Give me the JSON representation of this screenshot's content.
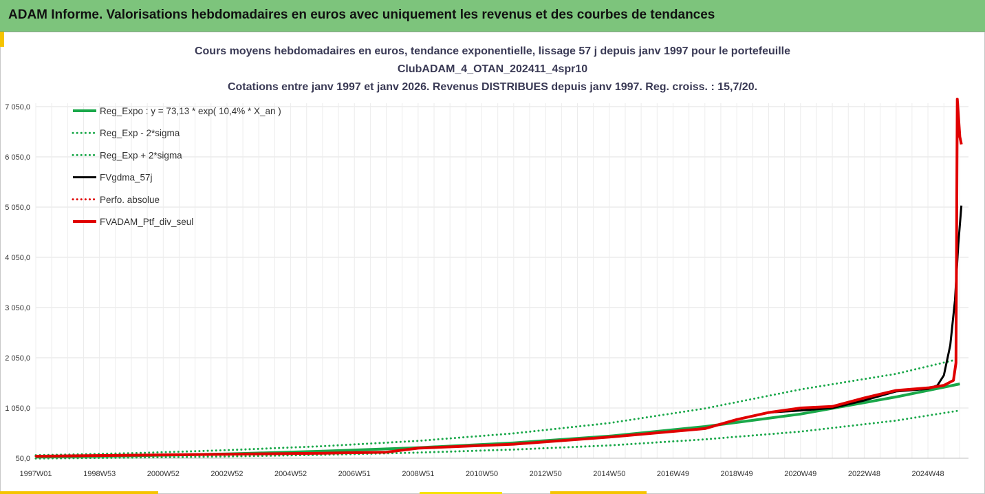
{
  "header": {
    "title": "ADAM Informe. Valorisations hebdomadaires en euros avec uniquement les revenus et des courbes de tendances"
  },
  "chart_data": {
    "type": "line",
    "title_lines": [
      "Cours moyens hebdomadaires  en euros, tendance exponentielle, lissage 57 j depuis janv 1997 pour le portefeuille",
      "ClubADAM_4_OTAN_202411_4spr10",
      "Cotations entre janv 1997 et janv 2026. Revenus DISTRIBUES depuis janv 1997. Reg. croiss. : 15,7/20."
    ],
    "xlabel": "",
    "ylabel": "",
    "ylim": [
      50,
      7400
    ],
    "yticks": [
      "7 050,0",
      "6 050,0",
      "5 050,0",
      "4 050,0",
      "3 050,0",
      "2 050,0",
      "1 050,0",
      "50,0"
    ],
    "ytick_values": [
      7050,
      6050,
      5050,
      4050,
      3050,
      2050,
      1050,
      50
    ],
    "xticks": [
      "1997W01",
      "1998W53",
      "2000W52",
      "2002W52",
      "2004W52",
      "2006W51",
      "2008W51",
      "2010W50",
      "2012W50",
      "2014W50",
      "2016W49",
      "2018W49",
      "2020W49",
      "2022W48",
      "2024W48"
    ],
    "xtick_years": [
      1997.0,
      1999.0,
      2001.0,
      2003.0,
      2005.0,
      2007.0,
      2009.0,
      2011.0,
      2013.0,
      2015.0,
      2017.0,
      2019.0,
      2021.0,
      2023.0,
      2025.0
    ],
    "xlim": [
      1997.0,
      2026.1
    ],
    "series": [
      {
        "name": "Reg_Expo : y = 73,13 * exp( 10,4% *  X_an )",
        "color": "#1aa84a",
        "style": "solid",
        "width": 4,
        "x": [
          1997,
          2000,
          2003,
          2006,
          2009,
          2012,
          2015,
          2018,
          2021,
          2024,
          2026
        ],
        "values": [
          73,
          100,
          135,
          190,
          260,
          355,
          490,
          680,
          930,
          1270,
          1530
        ]
      },
      {
        "name": "Reg_Exp - 2*sigma",
        "color": "#1aa84a",
        "style": "dotted",
        "width": 3,
        "x": [
          1997,
          2000,
          2003,
          2006,
          2009,
          2012,
          2015,
          2018,
          2021,
          2024,
          2026
        ],
        "values": [
          45,
          62,
          85,
          118,
          163,
          222,
          305,
          425,
          580,
          800,
          1000
        ]
      },
      {
        "name": "Reg_Exp + 2*sigma",
        "color": "#1aa84a",
        "style": "dotted",
        "width": 3,
        "x": [
          1997,
          2000,
          2003,
          2006,
          2009,
          2012,
          2015,
          2018,
          2021,
          2024,
          2026
        ],
        "values": [
          110,
          150,
          210,
          290,
          395,
          545,
          750,
          1040,
          1420,
          1730,
          2030
        ]
      },
      {
        "name": "FVgdma_57j",
        "color": "#000000",
        "style": "solid",
        "width": 3,
        "x": [
          1997,
          2000,
          2003,
          2006,
          2008,
          2009,
          2012,
          2015,
          2018,
          2019,
          2020,
          2021,
          2022,
          2023,
          2024,
          2025,
          2025.3,
          2025.5,
          2025.7,
          2025.85,
          2025.95,
          2026.05
        ],
        "values": [
          90,
          110,
          130,
          150,
          170,
          250,
          330,
          470,
          640,
          820,
          960,
          1000,
          1050,
          1200,
          1380,
          1430,
          1500,
          1700,
          2300,
          3200,
          4300,
          5080
        ]
      },
      {
        "name": "Perfo. absolue",
        "color": "#e00000",
        "style": "dotted",
        "width": 3,
        "x": [
          1997,
          2000,
          2003,
          2006,
          2008,
          2009,
          2012,
          2015,
          2018,
          2019,
          2020,
          2021,
          2022,
          2023,
          2024,
          2025,
          2025.5,
          2025.8,
          2025.88,
          2025.92,
          2026.0,
          2026.05
        ],
        "values": [
          90,
          110,
          130,
          150,
          170,
          250,
          330,
          470,
          640,
          820,
          960,
          1050,
          1080,
          1250,
          1400,
          1450,
          1500,
          1600,
          1950,
          7200,
          6450,
          6300
        ]
      },
      {
        "name": "FVADAM_Ptf_div_seul",
        "color": "#e00000",
        "style": "solid",
        "width": 4,
        "x": [
          1997,
          2000,
          2003,
          2006,
          2008,
          2009,
          2012,
          2015,
          2018,
          2019,
          2020,
          2021,
          2022,
          2023,
          2024,
          2025,
          2025.5,
          2025.8,
          2025.88,
          2025.92,
          2026.0,
          2026.05
        ],
        "values": [
          90,
          110,
          130,
          150,
          170,
          250,
          330,
          470,
          640,
          820,
          960,
          1050,
          1080,
          1250,
          1400,
          1450,
          1500,
          1600,
          1950,
          7200,
          6450,
          6300
        ]
      }
    ],
    "legend_position": "top-left",
    "grid": true
  }
}
